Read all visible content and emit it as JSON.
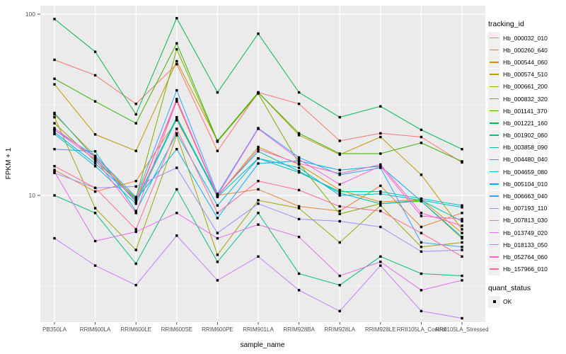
{
  "panel": {
    "bg": "#EBEBEB",
    "grid_major": "#FFFFFF",
    "grid_minor": "#FFFFFF",
    "tick_color": "#333333",
    "tick_label_color": "#4D4D4D",
    "axis_title_color": "#000000",
    "point_color": "#000000"
  },
  "legend": {
    "tracking_title": "tracking_id",
    "quant_title": "quant_status",
    "quant_value": "OK"
  },
  "chart_data": {
    "type": "line",
    "title": "",
    "xlabel": "sample_name",
    "ylabel": "FPKM + 1",
    "y_scale": "log10",
    "ylim": [
      2,
      112
    ],
    "y_ticks": [
      10,
      100
    ],
    "y_minor": [
      3.162,
      31.62
    ],
    "grid": "on",
    "legend_position": "right",
    "point_shape": "black-square",
    "quant_status": "OK",
    "categories": [
      "PB350LA",
      "RRIM600LA",
      "RRIM600LE",
      "RRIM600SE",
      "RRIM600PE",
      "RRIM901LA",
      "RRIM928BA",
      "RRIM928LA",
      "RRIM928LE",
      "RRII105LA_Control",
      "RRII105LA_Stressed"
    ],
    "series": [
      {
        "name": "Hb_000032_010",
        "color": "#F8766D",
        "values": [
          56,
          46,
          32,
          53,
          17.6,
          37,
          32,
          20,
          22,
          21,
          15.2
        ]
      },
      {
        "name": "Hb_000260_640",
        "color": "#EA8331",
        "values": [
          13.8,
          10.5,
          12,
          26,
          10,
          10.8,
          8.7,
          8.2,
          11.3,
          6.7,
          8
        ]
      },
      {
        "name": "Hb_000544_060",
        "color": "#D89000",
        "values": [
          28,
          16.5,
          9.5,
          33,
          9.9,
          18.5,
          14.8,
          10.7,
          9.2,
          9.5,
          6.2
        ]
      },
      {
        "name": "Hb_000574_510",
        "color": "#C09B00",
        "values": [
          41,
          21.7,
          17.6,
          55,
          20,
          37,
          21.5,
          16.8,
          21,
          13,
          6.5
        ]
      },
      {
        "name": "Hb_000661_200",
        "color": "#A3A500",
        "values": [
          27,
          8.5,
          5,
          21.5,
          4.7,
          9.4,
          8.5,
          5.5,
          8.8,
          5.2,
          5.5
        ]
      },
      {
        "name": "Hb_000832_320",
        "color": "#7CAE00",
        "values": [
          25,
          15.5,
          9.7,
          64,
          19.8,
          36.5,
          15,
          7.9,
          9,
          9.3,
          5.8
        ]
      },
      {
        "name": "Hb_001141_370",
        "color": "#39B600",
        "values": [
          44,
          33,
          25,
          69,
          20,
          37,
          22,
          17,
          17,
          19.5,
          15.4
        ]
      },
      {
        "name": "Hb_001221_160",
        "color": "#00BB4E",
        "values": [
          94,
          62,
          28,
          95,
          37,
          78,
          37,
          27,
          31,
          23,
          18
        ]
      },
      {
        "name": "Hb_001902_060",
        "color": "#00BF7D",
        "values": [
          10,
          8,
          4.2,
          10.8,
          4.3,
          8,
          3.7,
          3.2,
          4.6,
          3.7,
          3.6
        ]
      },
      {
        "name": "Hb_003858_090",
        "color": "#00C1A3",
        "values": [
          28.5,
          16,
          9.3,
          27,
          10,
          17.5,
          13.6,
          10.3,
          9,
          9.4,
          7.2
        ]
      },
      {
        "name": "Hb_004480_040",
        "color": "#00BFC4",
        "values": [
          21.8,
          14.5,
          9,
          26.5,
          9.8,
          16,
          13.4,
          10.5,
          10.5,
          9.6,
          8.8
        ]
      },
      {
        "name": "Hb_004659_080",
        "color": "#00BAE0",
        "values": [
          18,
          17.5,
          8.2,
          22,
          8.8,
          16,
          14.2,
          10,
          10.2,
          9.4,
          8.6
        ]
      },
      {
        "name": "Hb_005104_010",
        "color": "#00B0F6",
        "values": [
          22.3,
          15,
          9.5,
          18,
          7.5,
          15,
          15.5,
          13.8,
          14.5,
          9.3,
          5.9
        ]
      },
      {
        "name": "Hb_006663_040",
        "color": "#35A2FF",
        "values": [
          23,
          16.5,
          9.8,
          38,
          10.2,
          23.5,
          16.2,
          13,
          14.2,
          5.5,
          5.2
        ]
      },
      {
        "name": "Hb_007193_110",
        "color": "#9590FF",
        "values": [
          13.3,
          11,
          11.2,
          14.2,
          6.2,
          9,
          7.4,
          7.2,
          6.7,
          4.9,
          5
        ]
      },
      {
        "name": "Hb_007813_030",
        "color": "#C77CFF",
        "values": [
          5.8,
          4.1,
          3.2,
          6,
          3.4,
          4.6,
          3,
          2.3,
          4.1,
          2.3,
          2.1
        ]
      },
      {
        "name": "Hb_013749_020",
        "color": "#E76BF3",
        "values": [
          13.5,
          5.6,
          6.3,
          8,
          5.8,
          6.9,
          5.9,
          3.6,
          4.3,
          3,
          3.4
        ]
      },
      {
        "name": "Hb_018133_050",
        "color": "#FA62DB",
        "values": [
          23.5,
          16.2,
          9.2,
          34,
          10,
          23.3,
          15.8,
          11.5,
          14.5,
          7.7,
          7.4
        ]
      },
      {
        "name": "Hb_052764_060",
        "color": "#FF61C9",
        "values": [
          23,
          15.8,
          8,
          33.5,
          9.9,
          18,
          15,
          13.2,
          14.8,
          8,
          6.8
        ]
      },
      {
        "name": "Hb_157966_010",
        "color": "#FF6A98",
        "values": [
          14.5,
          11,
          6.5,
          23.3,
          8,
          12,
          10.7,
          8.7,
          8.2,
          6.2,
          4.6
        ]
      }
    ]
  }
}
